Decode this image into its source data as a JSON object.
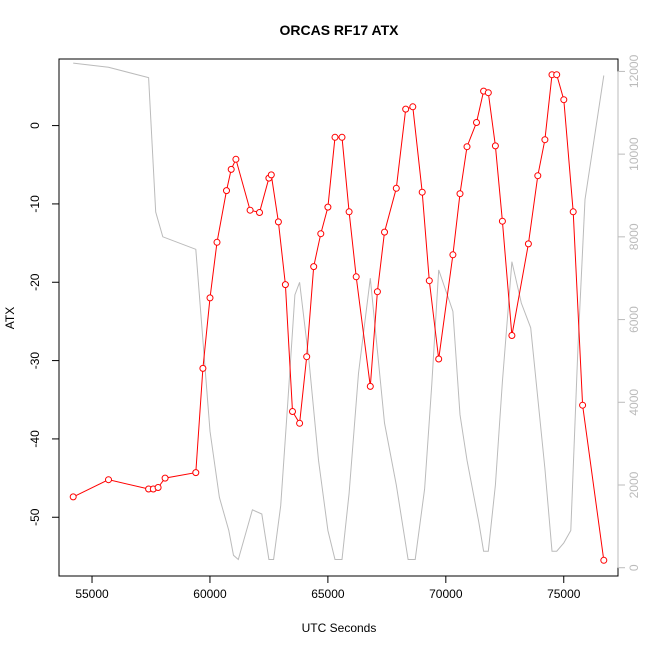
{
  "chart_data": {
    "type": "line",
    "title": "ORCAS RF17 ATX",
    "xlabel": "UTC Seconds",
    "ylabel": "ATX",
    "xlim": [
      53600,
      77300
    ],
    "ylim": [
      -57.5,
      8.5
    ],
    "y2lim": [
      -200,
      12300
    ],
    "x_ticks": [
      55000,
      60000,
      65000,
      70000,
      75000
    ],
    "y_ticks": [
      0,
      -10,
      -20,
      -30,
      -40,
      -50
    ],
    "y2_ticks": [
      0,
      2000,
      4000,
      6000,
      8000,
      10000,
      12000
    ],
    "grid": false,
    "series": [
      {
        "role": "primary",
        "color": "#ff0000",
        "marker": "open-circle",
        "x": [
          54200,
          55700,
          57400,
          57600,
          57800,
          58100,
          59400,
          59700,
          60000,
          60300,
          60700,
          60900,
          61100,
          61700,
          62100,
          62500,
          62600,
          62900,
          63200,
          63500,
          63800,
          64100,
          64400,
          64700,
          65000,
          65300,
          65600,
          65900,
          66200,
          66800,
          67100,
          67400,
          67900,
          68300,
          68600,
          69000,
          69300,
          69700,
          70300,
          70600,
          70900,
          71300,
          71600,
          71800,
          72100,
          72400,
          72800,
          73500,
          73900,
          74200,
          74500,
          74700,
          75000,
          75400,
          75800,
          76700
        ],
        "y": [
          -47.4,
          -45.2,
          -46.4,
          -46.4,
          -46.2,
          -45.0,
          -44.3,
          -31.0,
          -22.0,
          -14.9,
          -8.3,
          -5.6,
          -4.3,
          -10.8,
          -11.1,
          -6.7,
          -6.3,
          -12.3,
          -20.3,
          -36.5,
          -38.0,
          -29.5,
          -18.0,
          -13.8,
          -10.4,
          -1.5,
          -1.5,
          -11.0,
          -19.3,
          -33.3,
          -21.2,
          -13.6,
          -8.0,
          2.1,
          2.4,
          -8.5,
          -19.8,
          -29.8,
          -16.5,
          -8.7,
          -2.7,
          0.4,
          4.4,
          4.2,
          -2.6,
          -12.2,
          -26.8,
          -15.1,
          -6.4,
          -1.8,
          6.5,
          6.5,
          3.3,
          -11.0,
          -35.7,
          -55.5
        ]
      },
      {
        "role": "secondary",
        "color": "#bbbbbb",
        "x": [
          54200,
          55700,
          57400,
          57700,
          58000,
          59400,
          59700,
          60000,
          60400,
          60800,
          61000,
          61200,
          61800,
          62200,
          62500,
          62700,
          63000,
          63300,
          63600,
          63800,
          64200,
          64600,
          65000,
          65300,
          65600,
          65900,
          66300,
          66800,
          67400,
          67900,
          68400,
          68700,
          69100,
          69400,
          69700,
          70300,
          70600,
          70900,
          71400,
          71600,
          71800,
          72100,
          72400,
          72800,
          73200,
          73600,
          73900,
          74200,
          74500,
          74700,
          75000,
          75300,
          75600,
          75900,
          76700
        ],
        "y": [
          12200,
          12100,
          11850,
          8600,
          8000,
          7700,
          5500,
          3300,
          1700,
          900,
          300,
          200,
          1400,
          1300,
          200,
          200,
          1500,
          4000,
          6600,
          6900,
          5000,
          2600,
          900,
          200,
          200,
          1800,
          4700,
          7000,
          3500,
          2000,
          200,
          200,
          1900,
          4400,
          7200,
          6200,
          3700,
          2600,
          1100,
          400,
          400,
          2000,
          4500,
          7400,
          6400,
          5800,
          4100,
          2400,
          400,
          400,
          600,
          900,
          5300,
          8900,
          11900
        ]
      }
    ]
  }
}
